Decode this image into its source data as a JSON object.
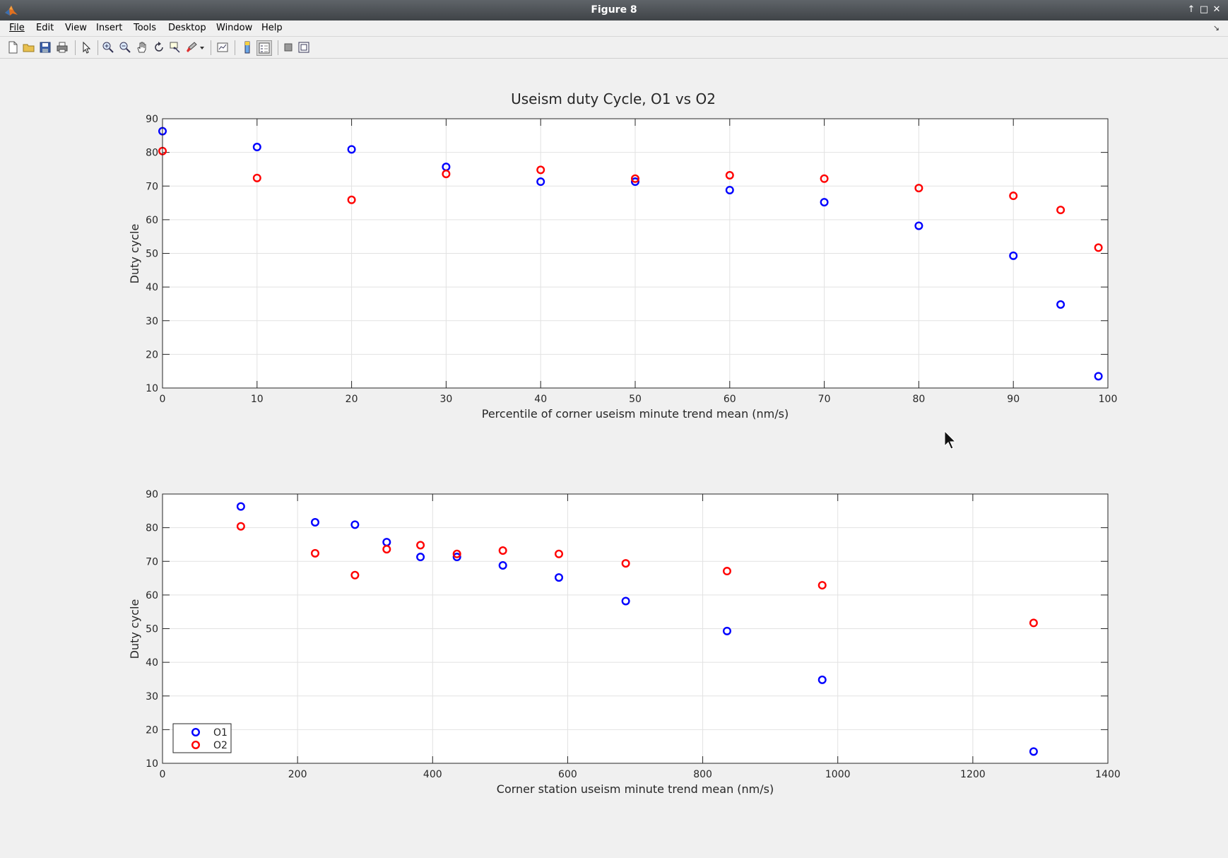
{
  "window": {
    "title": "Figure 8"
  },
  "menu": [
    "File",
    "Edit",
    "View",
    "Insert",
    "Tools",
    "Desktop",
    "Window",
    "Help"
  ],
  "colors": {
    "o1": "#0000ff",
    "o2": "#ff0000",
    "grid": "#e2e2e2"
  },
  "toolbar_icons": [
    "new-figure-icon",
    "open-file-icon",
    "save-icon",
    "print-icon",
    "edit-plot-arrow-icon",
    "zoom-in-icon",
    "zoom-out-icon",
    "pan-hand-icon",
    "rotate-3d-icon",
    "data-cursor-icon",
    "brush-icon",
    "link-plot-icon",
    "colorbar-icon",
    "legend-icon",
    "hide-plot-tools-icon",
    "show-plot-tools-icon"
  ],
  "chart_data": [
    {
      "type": "scatter",
      "title": "Useism duty Cycle, O1 vs O2",
      "xlabel": "Percentile of corner useism minute trend mean (nm/s)",
      "ylabel": "Duty cycle",
      "xlim": [
        0,
        100
      ],
      "ylim": [
        10,
        90
      ],
      "xticks": [
        0,
        10,
        20,
        30,
        40,
        50,
        60,
        70,
        80,
        90,
        100
      ],
      "yticks": [
        10,
        20,
        30,
        40,
        50,
        60,
        70,
        80,
        90
      ],
      "grid": true,
      "series": [
        {
          "name": "O1",
          "color": "#0000ff",
          "x": [
            0,
            10,
            20,
            30,
            40,
            50,
            60,
            70,
            80,
            90,
            95,
            99
          ],
          "y": [
            86.3,
            81.6,
            80.9,
            75.7,
            71.3,
            71.3,
            68.8,
            65.2,
            58.2,
            49.3,
            34.8,
            13.5
          ]
        },
        {
          "name": "O2",
          "color": "#ff0000",
          "x": [
            0,
            10,
            20,
            30,
            40,
            50,
            60,
            70,
            80,
            90,
            95,
            99
          ],
          "y": [
            80.4,
            72.4,
            65.9,
            73.6,
            74.8,
            72.2,
            73.2,
            72.2,
            69.4,
            67.1,
            62.9,
            51.7
          ]
        }
      ]
    },
    {
      "type": "scatter",
      "xlabel": "Corner station useism minute trend mean (nm/s)",
      "ylabel": "Duty cycle",
      "xlim": [
        0,
        1400
      ],
      "ylim": [
        10,
        90
      ],
      "xticks": [
        0,
        200,
        400,
        600,
        800,
        1000,
        1200,
        1400
      ],
      "yticks": [
        10,
        20,
        30,
        40,
        50,
        60,
        70,
        80,
        90
      ],
      "grid": true,
      "legend": {
        "location": "bottom-left",
        "entries": [
          "O1",
          "O2"
        ]
      },
      "series": [
        {
          "name": "O1",
          "color": "#0000ff",
          "x": [
            116,
            226,
            285,
            332,
            382,
            436,
            504,
            587,
            686,
            836,
            977,
            1290
          ],
          "y": [
            86.3,
            81.6,
            80.9,
            75.7,
            71.3,
            71.3,
            68.8,
            65.2,
            58.2,
            49.3,
            34.8,
            13.5
          ]
        },
        {
          "name": "O2",
          "color": "#ff0000",
          "x": [
            116,
            226,
            285,
            332,
            382,
            436,
            504,
            587,
            686,
            836,
            977,
            1290
          ],
          "y": [
            80.4,
            72.4,
            65.9,
            73.6,
            74.8,
            72.2,
            73.2,
            72.2,
            69.4,
            67.1,
            62.9,
            51.7
          ]
        }
      ]
    }
  ]
}
